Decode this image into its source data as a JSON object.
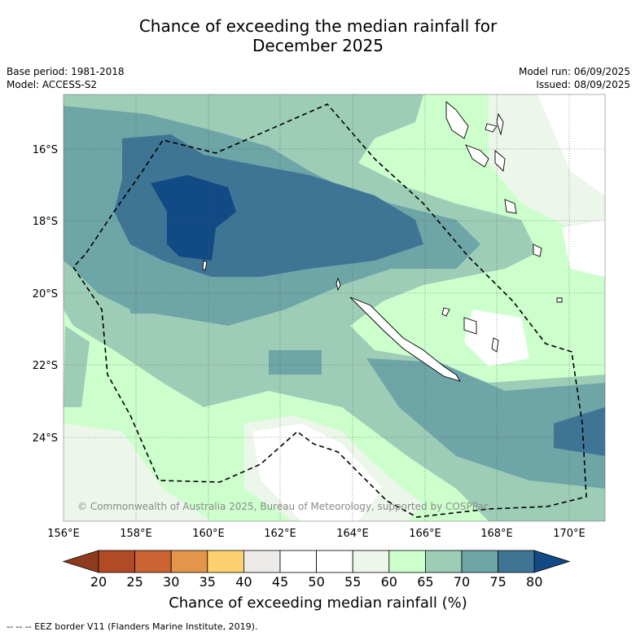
{
  "title_line1": "Chance of exceeding the median rainfall for",
  "title_line2": "December 2025",
  "base_period": "Base period: 1981-2018",
  "model": "Model: ACCESS-S2",
  "model_run": "Model run: 06/09/2025",
  "issued": "Issued: 08/09/2025",
  "copyright": "© Commonwealth of Australia 2025, Bureau of Meteorology, supported by COSPPac",
  "colorbar_label": "Chance of exceeding median rainfall (%)",
  "footer": "--  --  -- EEZ border V11 (Flanders Marine Institute, 2019).",
  "lon_ticks": [
    "156°E",
    "158°E",
    "160°E",
    "162°E",
    "164°E",
    "166°E",
    "168°E",
    "170°E"
  ],
  "lat_ticks": [
    "16°S",
    "18°S",
    "20°S",
    "22°S",
    "24°S"
  ],
  "colorbar": {
    "ticks": [
      "20",
      "25",
      "30",
      "35",
      "40",
      "45",
      "50",
      "55",
      "60",
      "65",
      "70",
      "75",
      "80"
    ],
    "colors": [
      "#8f3a1e",
      "#b24a26",
      "#cb6432",
      "#e3954a",
      "#fdd26e",
      "#ecebe8",
      "#ffffff",
      "#ffffff",
      "#ecf6ea",
      "#ccffcc",
      "#9dcdb6",
      "#6ea5a7",
      "#3e7595",
      "#124a86"
    ]
  }
}
